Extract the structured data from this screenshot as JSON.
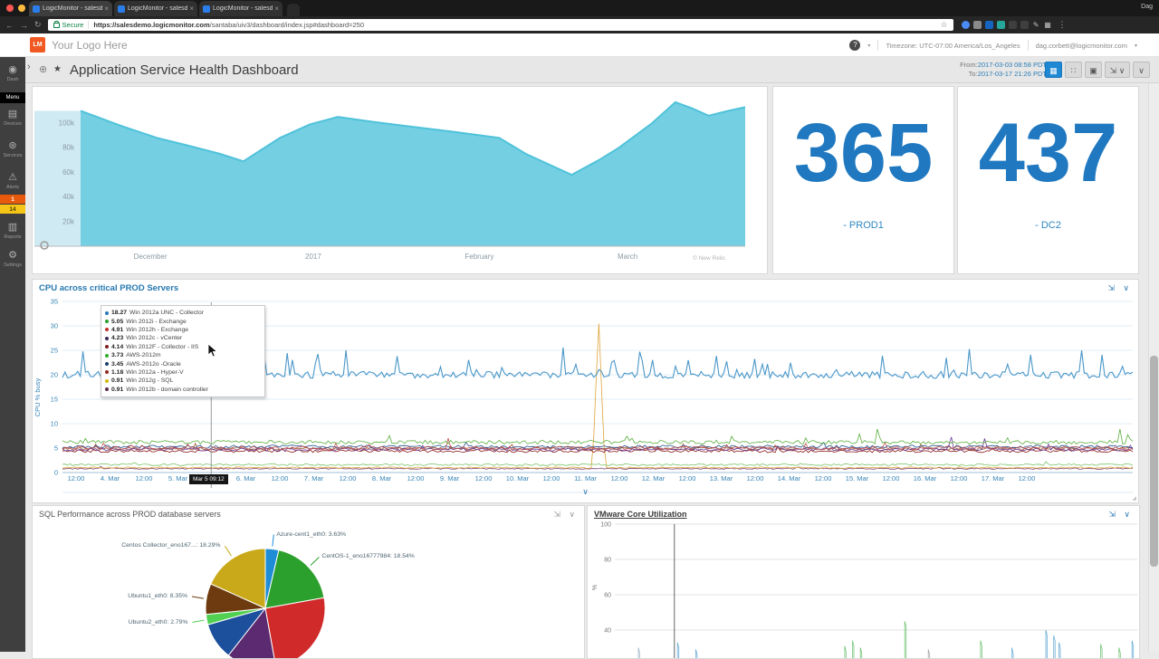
{
  "icons": {
    "expand": "⇲",
    "chevron": "∨",
    "resize": "◢",
    "star": "★",
    "globe": "⊕",
    "collapse": "›",
    "help": "?",
    "caret": "▾",
    "back": "←",
    "forward": "→",
    "reload": "↻",
    "bookmark": "☆",
    "dots": "⋮"
  },
  "browser": {
    "profile_name": "Dag",
    "tabs": [
      {
        "label": "LogicMonitor - salesdemo - d",
        "close": "×"
      },
      {
        "label": "LogicMonitor - salesdemo - d",
        "close": "×"
      },
      {
        "label": "LogicMonitor - salesdemo - s",
        "close": "×"
      }
    ],
    "secure_label": "Secure",
    "url_domain": "https://salesdemo.logicmonitor.com",
    "url_path": "/santaba/uiv3/dashboard/index.jsp#dashboard=250",
    "extensions": [
      {
        "name": "extension-blue-circle",
        "color": "#4b8bf5",
        "shape": "circle"
      },
      {
        "name": "extension-gray",
        "color": "#8a8a8a"
      },
      {
        "name": "extension-blue",
        "color": "#1565c0"
      },
      {
        "name": "extension-teal",
        "color": "#26a69a"
      },
      {
        "name": "extension-disabled-1",
        "color": "#5f5f5f",
        "faded": true
      },
      {
        "name": "extension-disabled-2",
        "color": "#5f5f5f",
        "faded": true
      },
      {
        "name": "pencil-icon",
        "glyph": "✎"
      },
      {
        "name": "apps-grid-icon",
        "glyph": "▦"
      }
    ]
  },
  "header": {
    "logo_badge": "LM",
    "logo_text": "Your Logo Here",
    "timezone": "Timezone: UTC-07:00 America/Los_Angeles",
    "user_email": "dag.corbett@logicmonitor.com"
  },
  "sidebar": {
    "icons": {
      "dash": "◉",
      "devices": "▤",
      "services": "⊛",
      "alerts": "⚠",
      "reports": "▥",
      "settings": "⚙"
    },
    "items": [
      {
        "id": "dash",
        "label": "Dash"
      },
      {
        "id": "menu",
        "label": "Menu"
      },
      {
        "id": "devices",
        "label": "Devices"
      },
      {
        "id": "services",
        "label": "Services"
      },
      {
        "id": "alerts",
        "label": "Alerts",
        "badges": [
          {
            "text": "1",
            "bg": "#e8590c",
            "fg": "#ffffff"
          },
          {
            "text": "14",
            "bg": "#f5c518",
            "fg": "#4a3b00"
          }
        ]
      },
      {
        "id": "reports",
        "label": "Reports"
      },
      {
        "id": "settings",
        "label": "Settings"
      }
    ]
  },
  "toolbar": {
    "title": "Application Service Health Dashboard",
    "from_label": "From:",
    "from_value": "2017-03-03 08:58 PDT",
    "to_label": "To:",
    "to_value": "2017-03-17 21:26 PDT",
    "buttons": [
      {
        "name": "calendar-button",
        "glyph": "▦",
        "primary": true
      },
      {
        "name": "widgets-grid-button",
        "glyph": "∷"
      },
      {
        "name": "clone-button",
        "glyph": "▣"
      },
      {
        "name": "fullscreen-button",
        "glyph": "⇲ ∨",
        "wide": true
      },
      {
        "name": "collapse-header-button",
        "glyph": "∨"
      }
    ]
  },
  "widgets": {
    "prod1": {
      "value": "365",
      "label": "- PROD1"
    },
    "dc2": {
      "value": "437",
      "label": "- DC2"
    },
    "cpu_title": "CPU across critical PROD Servers",
    "sql_title": "SQL Performance across PROD database servers",
    "vmware_title": "VMware Core Utilization",
    "area_watermark": "© New Relic"
  },
  "chart_data": [
    {
      "id": "service-volume",
      "type": "area",
      "title": "",
      "unit": "k",
      "color": "#74cfe2",
      "ylim": [
        0,
        125000
      ],
      "y_ticks": [
        "100k",
        "80k",
        "60k",
        "40k",
        "20k"
      ],
      "x_ticks": [
        {
          "label": "December",
          "x": 0.105
        },
        {
          "label": "2017",
          "x": 0.35
        },
        {
          "label": "February",
          "x": 0.6
        },
        {
          "label": "March",
          "x": 0.823
        }
      ],
      "points": [
        {
          "x": 0.0,
          "y": 110
        },
        {
          "x": 0.03,
          "y": 104
        },
        {
          "x": 0.065,
          "y": 97
        },
        {
          "x": 0.115,
          "y": 88
        },
        {
          "x": 0.16,
          "y": 82
        },
        {
          "x": 0.21,
          "y": 75
        },
        {
          "x": 0.245,
          "y": 69
        },
        {
          "x": 0.3,
          "y": 88
        },
        {
          "x": 0.345,
          "y": 99
        },
        {
          "x": 0.387,
          "y": 105
        },
        {
          "x": 0.44,
          "y": 101
        },
        {
          "x": 0.5,
          "y": 97
        },
        {
          "x": 0.56,
          "y": 93
        },
        {
          "x": 0.63,
          "y": 88
        },
        {
          "x": 0.67,
          "y": 75
        },
        {
          "x": 0.739,
          "y": 58
        },
        {
          "x": 0.78,
          "y": 70
        },
        {
          "x": 0.81,
          "y": 80
        },
        {
          "x": 0.86,
          "y": 100
        },
        {
          "x": 0.895,
          "y": 117
        },
        {
          "x": 0.92,
          "y": 112
        },
        {
          "x": 0.945,
          "y": 106
        },
        {
          "x": 0.975,
          "y": 110
        },
        {
          "x": 1.0,
          "y": 113
        }
      ]
    },
    {
      "id": "cpu-prod",
      "type": "line",
      "title": "CPU across critical PROD Servers",
      "ylabel": "CPU % busy",
      "ylim": [
        0,
        35
      ],
      "y_ticks": [
        35,
        30,
        25,
        20,
        15,
        10,
        5,
        0
      ],
      "x_ticks": [
        "12:00",
        "4. Mar",
        "12:00",
        "5. Mar",
        "12:00",
        "6. Mar",
        "12:00",
        "7. Mar",
        "12:00",
        "8. Mar",
        "12:00",
        "9. Mar",
        "12:00",
        "10. Mar",
        "12:00",
        "11. Mar",
        "12:00",
        "12. Mar",
        "12:00",
        "13. Mar",
        "12:00",
        "14. Mar",
        "12:00",
        "15. Mar",
        "12:00",
        "16. Mar",
        "12:00",
        "17. Mar",
        "12:00"
      ],
      "crosshair_x": 0.139,
      "tooltip": {
        "time": "Mar 5 09:12",
        "entries": [
          {
            "value": "18.27",
            "label": "Win 2012a UNC - Collector",
            "color": "#2878b8"
          },
          {
            "value": "5.05",
            "label": "Win 2012i - Exchange",
            "color": "#2e9e2e"
          },
          {
            "value": "4.91",
            "label": "Win 2012h - Exchange",
            "color": "#c4302b"
          },
          {
            "value": "4.23",
            "label": "Win 2012c - vCenter",
            "color": "#3f2a56"
          },
          {
            "value": "4.14",
            "label": "Win 2012F - Collector - IIS",
            "color": "#7c1d1d"
          },
          {
            "value": "3.73",
            "label": "AWS-2012m",
            "color": "#2fae2f"
          },
          {
            "value": "3.45",
            "label": "AWS-2012o -Oracle",
            "color": "#1d3e6e"
          },
          {
            "value": "1.18",
            "label": "Win 2012a - Hyper-V",
            "color": "#922b21"
          },
          {
            "value": "0.91",
            "label": "Win 2012g - SQL",
            "color": "#d6b80e"
          },
          {
            "value": "0.91",
            "label": "Win 2012b - domain controller",
            "color": "#5d2a4d"
          }
        ]
      },
      "series": [
        {
          "name": "Win 2012a UNC - Collector",
          "color": "#4a97c9",
          "base": 20,
          "jitter": 0.7,
          "spike_p": 0.1,
          "spike_max": 5
        },
        {
          "name": "Win 2012i - Exchange",
          "color": "#5aae3c",
          "base": 6.2,
          "jitter": 0.4,
          "spike_p": 0.03,
          "spike_max": 1.5,
          "events": [
            {
              "x": 0.762,
              "v": 10
            },
            {
              "x": 0.988,
              "v": 9
            }
          ]
        },
        {
          "name": "Win 2012h - Exchange",
          "color": "#c0504d",
          "base": 5.0,
          "jitter": 0.35,
          "spike_p": 0.03,
          "spike_max": 1.2,
          "events": [
            {
              "x": 0.36,
              "v": 7.5
            }
          ]
        },
        {
          "name": "Win 2012c - vCenter",
          "color": "#6a3d9a",
          "base": 4.7,
          "jitter": 0.3,
          "spike_p": 0.02,
          "spike_max": 1.0,
          "events": [
            {
              "x": 0.83,
              "v": 8
            },
            {
              "x": 0.862,
              "v": 7.5
            }
          ]
        },
        {
          "name": "Win 2012F - Collector - IIS",
          "color": "#8b1a1a",
          "base": 4.4,
          "jitter": 0.3,
          "spike_p": 0.02,
          "spike_max": 1.0
        },
        {
          "name": "AWS-2012m",
          "color": "#7ac36a",
          "base": 1.6,
          "jitter": 0.2,
          "spike_p": 0.01,
          "spike_max": 0.6
        },
        {
          "name": "AWS-2012o -Oracle",
          "color": "#27548e",
          "base": 5.3,
          "jitter": 0.3,
          "spike_p": 0.02,
          "spike_max": 1.0
        },
        {
          "name": "Win 2012a - Hyper-V",
          "color": "#a0522d",
          "base": 4.9,
          "jitter": 0.3,
          "spike_p": 0.02,
          "spike_max": 1.0
        },
        {
          "name": "Win 2012g - SQL",
          "color": "#dfa43c",
          "base": 1.0,
          "jitter": 0.15,
          "spike_p": 0.01,
          "spike_max": 0.5,
          "events": [
            {
              "x": 0.501,
              "v": 31.5
            }
          ]
        },
        {
          "name": "Win 2012b - domain controller",
          "color": "#7b4173",
          "base": 0.8,
          "jitter": 0.12,
          "spike_p": 0.01,
          "spike_max": 0.4
        }
      ]
    },
    {
      "id": "sql-pie",
      "type": "pie",
      "title": "SQL Performance across PROD database servers",
      "slices": [
        {
          "label": "Azure-cent1_eth0: 3.63%",
          "value": 3.63,
          "color": "#1f8dd6"
        },
        {
          "label": "CentOS-1_eno16777984: 18.54%",
          "value": 18.54,
          "color": "#2ca02c"
        },
        {
          "label": "",
          "value": 25.0,
          "color": "#d02a2a"
        },
        {
          "label": "",
          "value": 13.4,
          "color": "#5c2a70"
        },
        {
          "label": "",
          "value": 10.0,
          "color": "#1c4f9c"
        },
        {
          "label": "Ubuntu2_eth0: 2.79%",
          "value": 2.79,
          "color": "#52d052"
        },
        {
          "label": "Ubuntu1_eth0: 8.35%",
          "value": 8.35,
          "color": "#6d3b0f"
        },
        {
          "label": "Centos Collector_eno167...: 18.29%",
          "value": 18.29,
          "color": "#c9a91a"
        }
      ]
    },
    {
      "id": "vmware-core",
      "type": "line",
      "title": "VMware Core Utilization",
      "ylabel": "%",
      "ylim": [
        0,
        100
      ],
      "y_ticks": [
        100,
        80,
        60,
        40
      ],
      "crosshair_x": 0.114,
      "spikes": [
        {
          "x": 0.045,
          "v": 30,
          "color": "#9fb8c8"
        },
        {
          "x": 0.12,
          "v": 33,
          "color": "#6baed6"
        },
        {
          "x": 0.155,
          "v": 29,
          "color": "#6baed6"
        },
        {
          "x": 0.44,
          "v": 31,
          "color": "#74c476"
        },
        {
          "x": 0.455,
          "v": 34,
          "color": "#74c476"
        },
        {
          "x": 0.47,
          "v": 30,
          "color": "#74c476"
        },
        {
          "x": 0.555,
          "v": 45,
          "color": "#74c476"
        },
        {
          "x": 0.6,
          "v": 29,
          "color": "#aaaaaa"
        },
        {
          "x": 0.7,
          "v": 34,
          "color": "#74c476"
        },
        {
          "x": 0.76,
          "v": 30,
          "color": "#6baed6"
        },
        {
          "x": 0.825,
          "v": 40,
          "color": "#6baed6"
        },
        {
          "x": 0.84,
          "v": 37,
          "color": "#6baed6"
        },
        {
          "x": 0.85,
          "v": 33,
          "color": "#6baed6"
        },
        {
          "x": 0.93,
          "v": 32,
          "color": "#74c476"
        },
        {
          "x": 0.965,
          "v": 30,
          "color": "#74c476"
        },
        {
          "x": 0.99,
          "v": 34,
          "color": "#6baed6"
        }
      ]
    }
  ]
}
